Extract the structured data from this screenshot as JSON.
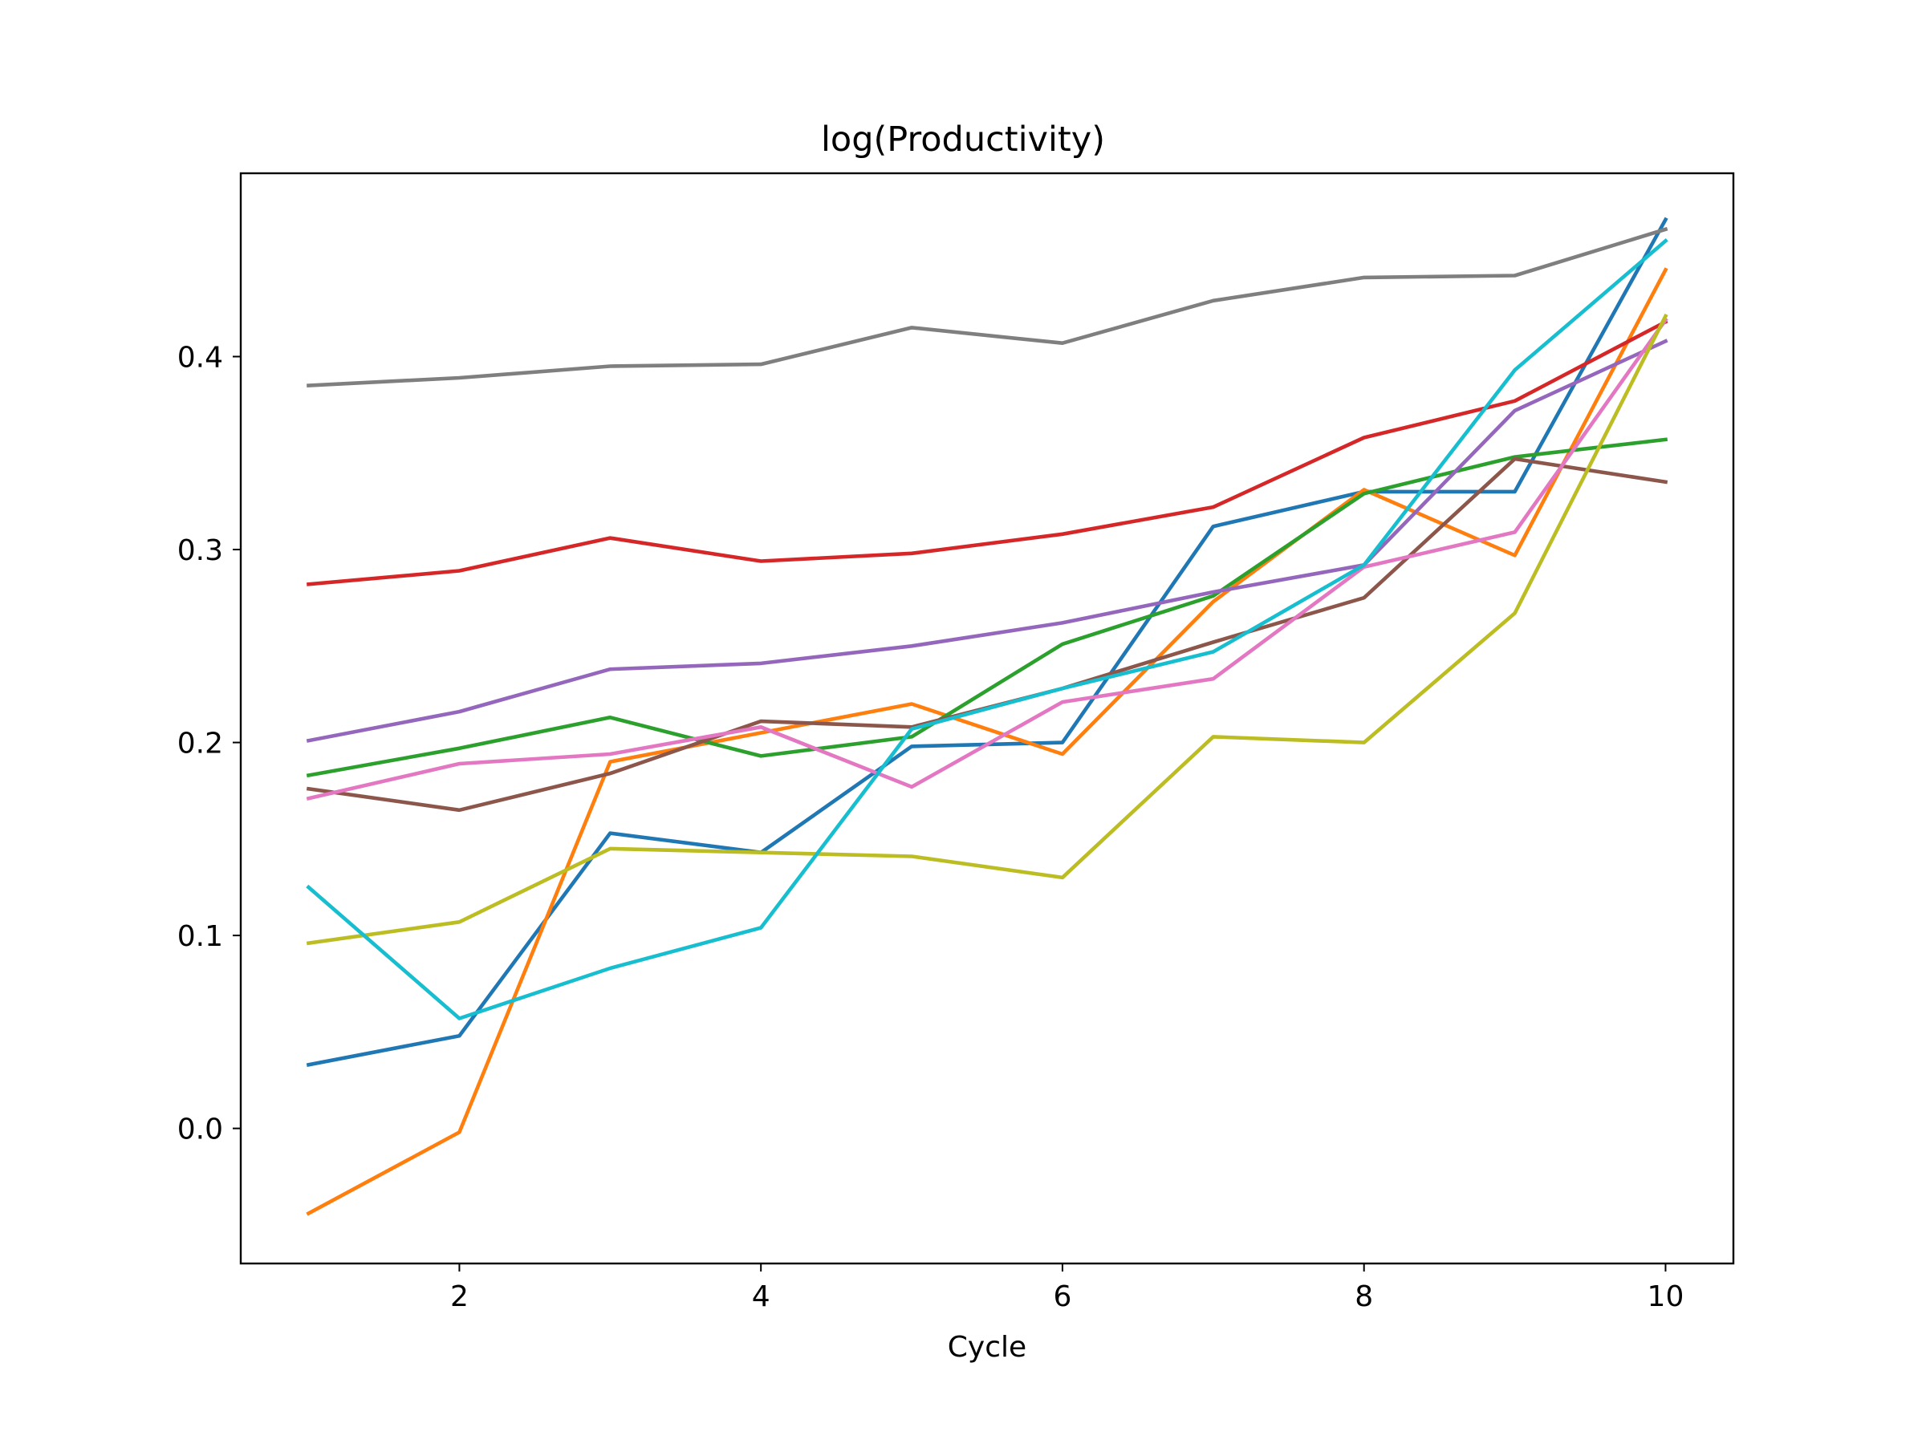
{
  "chart_data": {
    "type": "line",
    "title": "log(Productivity)",
    "xlabel": "Cycle",
    "ylabel": "",
    "x": [
      1,
      2,
      3,
      4,
      5,
      6,
      7,
      8,
      9,
      10
    ],
    "xlim": [
      0.55,
      10.45
    ],
    "ylim": [
      -0.07,
      0.495
    ],
    "xticks": [
      2,
      4,
      6,
      8,
      10
    ],
    "xtick_labels": [
      "2",
      "4",
      "6",
      "8",
      "10"
    ],
    "yticks": [
      0.0,
      0.1,
      0.2,
      0.3,
      0.4
    ],
    "ytick_labels": [
      "0.0",
      "0.1",
      "0.2",
      "0.3",
      "0.4"
    ],
    "grid": false,
    "legend": "none",
    "series": [
      {
        "color": "#1f77b4",
        "values": [
          0.033,
          0.048,
          0.153,
          0.143,
          0.198,
          0.2,
          0.312,
          0.33,
          0.33,
          0.471
        ]
      },
      {
        "color": "#ff7f0e",
        "values": [
          -0.044,
          -0.002,
          0.19,
          0.205,
          0.22,
          0.194,
          0.273,
          0.331,
          0.297,
          0.445
        ]
      },
      {
        "color": "#2ca02c",
        "values": [
          0.183,
          0.197,
          0.213,
          0.193,
          0.203,
          0.251,
          0.276,
          0.329,
          0.348,
          0.357
        ]
      },
      {
        "color": "#d62728",
        "values": [
          0.282,
          0.289,
          0.306,
          0.294,
          0.298,
          0.308,
          0.322,
          0.358,
          0.377,
          0.418
        ]
      },
      {
        "color": "#9467bd",
        "values": [
          0.201,
          0.216,
          0.238,
          0.241,
          0.25,
          0.262,
          0.278,
          0.292,
          0.372,
          0.408
        ]
      },
      {
        "color": "#8c564b",
        "values": [
          0.176,
          0.165,
          0.184,
          0.211,
          0.208,
          0.228,
          0.252,
          0.275,
          0.347,
          0.335
        ]
      },
      {
        "color": "#e377c2",
        "values": [
          0.171,
          0.189,
          0.194,
          0.208,
          0.177,
          0.221,
          0.233,
          0.291,
          0.309,
          0.419
        ]
      },
      {
        "color": "#7f7f7f",
        "values": [
          0.385,
          0.389,
          0.395,
          0.396,
          0.415,
          0.407,
          0.429,
          0.441,
          0.442,
          0.466
        ]
      },
      {
        "color": "#bcbd22",
        "values": [
          0.096,
          0.107,
          0.145,
          0.143,
          0.141,
          0.13,
          0.203,
          0.2,
          0.267,
          0.421
        ]
      },
      {
        "color": "#17becf",
        "values": [
          0.125,
          0.057,
          0.083,
          0.104,
          0.207,
          0.228,
          0.247,
          0.292,
          0.393,
          0.46
        ]
      }
    ]
  }
}
